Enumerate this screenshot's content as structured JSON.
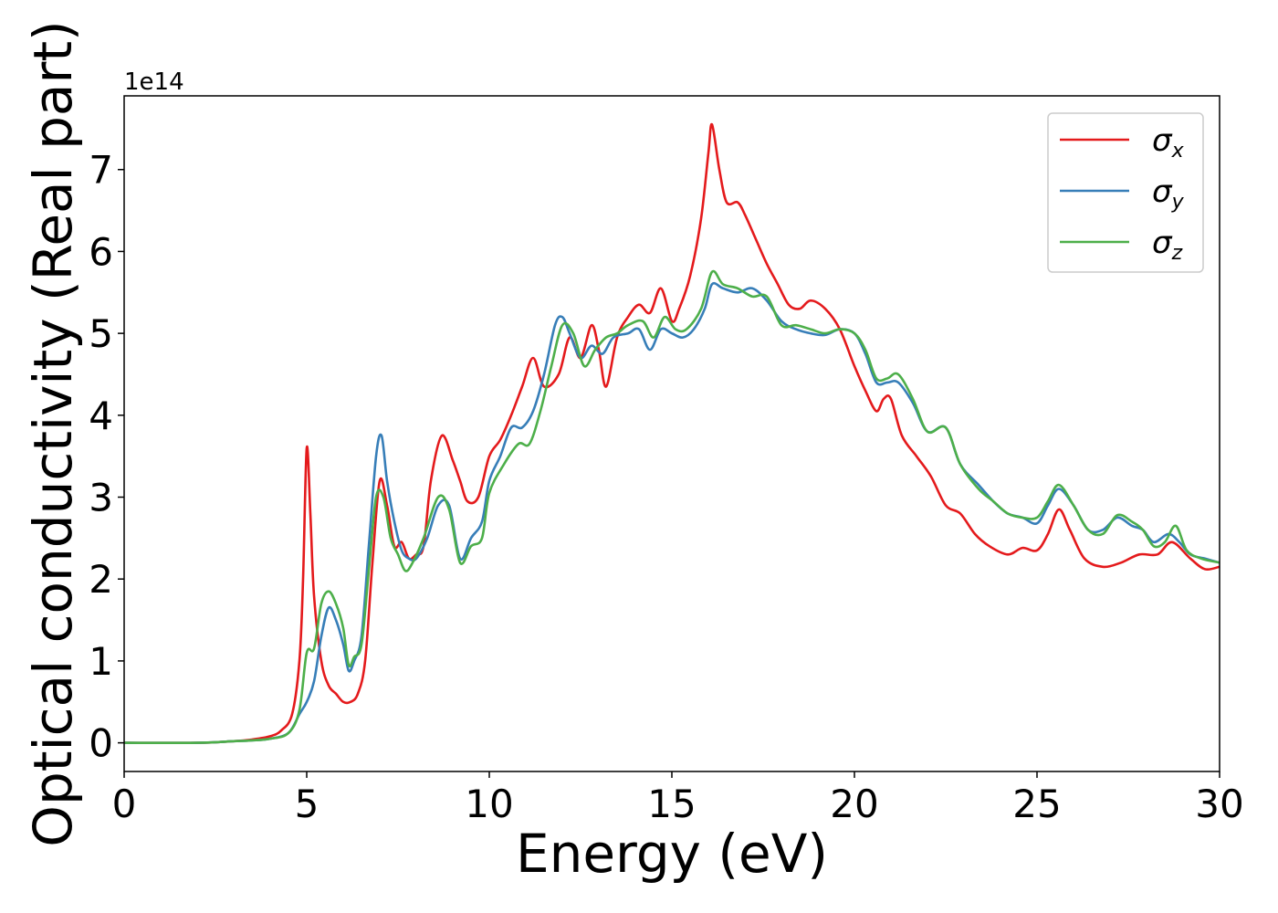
{
  "chart_data": {
    "type": "line",
    "title": "",
    "xlabel": "Energy (eV)",
    "ylabel": "Optical conductivity (Real part)",
    "y_offset_label": "1e14",
    "xlim": [
      0,
      30
    ],
    "ylim": [
      -0.35,
      7.9
    ],
    "x_ticks": [
      0,
      5,
      10,
      15,
      20,
      25,
      30
    ],
    "y_ticks": [
      0,
      1,
      2,
      3,
      4,
      5,
      6,
      7
    ],
    "x_tick_labels": [
      "0",
      "5",
      "10",
      "15",
      "20",
      "25",
      "30"
    ],
    "y_tick_labels": [
      "0",
      "1",
      "2",
      "3",
      "4",
      "5",
      "6",
      "7"
    ],
    "grid": false,
    "legend_position": "top-right",
    "series": [
      {
        "name": "σx",
        "symbol": "σ",
        "subscript": "x",
        "color": "#e41a1c",
        "points": [
          [
            0,
            0
          ],
          [
            2,
            0
          ],
          [
            3,
            0.02
          ],
          [
            3.5,
            0.04
          ],
          [
            4,
            0.08
          ],
          [
            4.3,
            0.15
          ],
          [
            4.6,
            0.35
          ],
          [
            4.8,
            1.0
          ],
          [
            4.9,
            2.0
          ],
          [
            5.0,
            3.6
          ],
          [
            5.1,
            2.8
          ],
          [
            5.2,
            1.8
          ],
          [
            5.4,
            1.0
          ],
          [
            5.6,
            0.7
          ],
          [
            5.8,
            0.6
          ],
          [
            6.0,
            0.5
          ],
          [
            6.2,
            0.5
          ],
          [
            6.4,
            0.6
          ],
          [
            6.6,
            1.0
          ],
          [
            6.8,
            2.2
          ],
          [
            7.0,
            3.2
          ],
          [
            7.2,
            2.9
          ],
          [
            7.4,
            2.4
          ],
          [
            7.6,
            2.45
          ],
          [
            7.8,
            2.25
          ],
          [
            8.0,
            2.3
          ],
          [
            8.2,
            2.4
          ],
          [
            8.4,
            3.2
          ],
          [
            8.7,
            3.75
          ],
          [
            9.0,
            3.45
          ],
          [
            9.2,
            3.2
          ],
          [
            9.4,
            2.95
          ],
          [
            9.7,
            3.0
          ],
          [
            10.0,
            3.5
          ],
          [
            10.3,
            3.7
          ],
          [
            10.6,
            4.0
          ],
          [
            10.9,
            4.35
          ],
          [
            11.2,
            4.7
          ],
          [
            11.5,
            4.35
          ],
          [
            11.9,
            4.5
          ],
          [
            12.2,
            4.95
          ],
          [
            12.5,
            4.7
          ],
          [
            12.8,
            5.1
          ],
          [
            13.0,
            4.8
          ],
          [
            13.2,
            4.35
          ],
          [
            13.5,
            4.95
          ],
          [
            13.8,
            5.2
          ],
          [
            14.1,
            5.35
          ],
          [
            14.4,
            5.25
          ],
          [
            14.7,
            5.55
          ],
          [
            15.0,
            5.15
          ],
          [
            15.2,
            5.3
          ],
          [
            15.5,
            5.7
          ],
          [
            15.8,
            6.4
          ],
          [
            16.0,
            7.2
          ],
          [
            16.1,
            7.55
          ],
          [
            16.3,
            7.0
          ],
          [
            16.5,
            6.6
          ],
          [
            16.8,
            6.6
          ],
          [
            17.0,
            6.45
          ],
          [
            17.3,
            6.15
          ],
          [
            17.6,
            5.85
          ],
          [
            17.9,
            5.6
          ],
          [
            18.2,
            5.35
          ],
          [
            18.5,
            5.3
          ],
          [
            18.8,
            5.4
          ],
          [
            19.2,
            5.3
          ],
          [
            19.6,
            5.05
          ],
          [
            20.0,
            4.6
          ],
          [
            20.3,
            4.3
          ],
          [
            20.6,
            4.05
          ],
          [
            20.8,
            4.2
          ],
          [
            21.0,
            4.2
          ],
          [
            21.3,
            3.75
          ],
          [
            21.7,
            3.5
          ],
          [
            22.1,
            3.25
          ],
          [
            22.5,
            2.9
          ],
          [
            22.9,
            2.8
          ],
          [
            23.3,
            2.55
          ],
          [
            23.7,
            2.4
          ],
          [
            24.2,
            2.3
          ],
          [
            24.6,
            2.38
          ],
          [
            25.0,
            2.35
          ],
          [
            25.3,
            2.55
          ],
          [
            25.6,
            2.85
          ],
          [
            25.9,
            2.6
          ],
          [
            26.3,
            2.25
          ],
          [
            26.8,
            2.15
          ],
          [
            27.3,
            2.2
          ],
          [
            27.8,
            2.3
          ],
          [
            28.3,
            2.3
          ],
          [
            28.7,
            2.45
          ],
          [
            29.2,
            2.25
          ],
          [
            29.6,
            2.12
          ],
          [
            30,
            2.15
          ]
        ]
      },
      {
        "name": "σy",
        "symbol": "σ",
        "subscript": "y",
        "color": "#377eb8",
        "points": [
          [
            0,
            0
          ],
          [
            2,
            0
          ],
          [
            3,
            0.02
          ],
          [
            3.5,
            0.03
          ],
          [
            4,
            0.05
          ],
          [
            4.5,
            0.12
          ],
          [
            4.8,
            0.35
          ],
          [
            5.0,
            0.5
          ],
          [
            5.2,
            0.75
          ],
          [
            5.4,
            1.3
          ],
          [
            5.6,
            1.65
          ],
          [
            5.8,
            1.5
          ],
          [
            6.0,
            1.2
          ],
          [
            6.15,
            0.88
          ],
          [
            6.3,
            1.0
          ],
          [
            6.5,
            1.3
          ],
          [
            6.7,
            2.4
          ],
          [
            6.9,
            3.5
          ],
          [
            7.05,
            3.75
          ],
          [
            7.2,
            3.2
          ],
          [
            7.4,
            2.7
          ],
          [
            7.6,
            2.35
          ],
          [
            7.8,
            2.25
          ],
          [
            8.0,
            2.25
          ],
          [
            8.3,
            2.5
          ],
          [
            8.6,
            2.9
          ],
          [
            8.9,
            2.9
          ],
          [
            9.2,
            2.25
          ],
          [
            9.5,
            2.5
          ],
          [
            9.8,
            2.7
          ],
          [
            10.0,
            3.2
          ],
          [
            10.3,
            3.5
          ],
          [
            10.6,
            3.85
          ],
          [
            10.9,
            3.85
          ],
          [
            11.2,
            4.05
          ],
          [
            11.5,
            4.5
          ],
          [
            11.8,
            5.1
          ],
          [
            12.0,
            5.2
          ],
          [
            12.2,
            5.0
          ],
          [
            12.5,
            4.7
          ],
          [
            12.8,
            4.85
          ],
          [
            13.1,
            4.75
          ],
          [
            13.4,
            4.95
          ],
          [
            13.8,
            5.0
          ],
          [
            14.1,
            5.05
          ],
          [
            14.4,
            4.8
          ],
          [
            14.7,
            5.05
          ],
          [
            15.0,
            5.0
          ],
          [
            15.3,
            4.95
          ],
          [
            15.6,
            5.05
          ],
          [
            15.9,
            5.3
          ],
          [
            16.1,
            5.6
          ],
          [
            16.4,
            5.55
          ],
          [
            16.8,
            5.5
          ],
          [
            17.2,
            5.55
          ],
          [
            17.6,
            5.4
          ],
          [
            18.0,
            5.15
          ],
          [
            18.4,
            5.05
          ],
          [
            18.8,
            5.0
          ],
          [
            19.2,
            4.98
          ],
          [
            19.6,
            5.05
          ],
          [
            20.0,
            5.0
          ],
          [
            20.3,
            4.75
          ],
          [
            20.6,
            4.4
          ],
          [
            20.9,
            4.4
          ],
          [
            21.2,
            4.4
          ],
          [
            21.6,
            4.15
          ],
          [
            22.0,
            3.8
          ],
          [
            22.5,
            3.85
          ],
          [
            22.9,
            3.4
          ],
          [
            23.4,
            3.15
          ],
          [
            23.8,
            2.95
          ],
          [
            24.2,
            2.8
          ],
          [
            24.6,
            2.75
          ],
          [
            25.0,
            2.68
          ],
          [
            25.3,
            2.9
          ],
          [
            25.6,
            3.1
          ],
          [
            26.0,
            2.9
          ],
          [
            26.4,
            2.6
          ],
          [
            26.8,
            2.6
          ],
          [
            27.2,
            2.75
          ],
          [
            27.6,
            2.65
          ],
          [
            27.9,
            2.6
          ],
          [
            28.2,
            2.45
          ],
          [
            28.6,
            2.55
          ],
          [
            28.9,
            2.45
          ],
          [
            29.2,
            2.3
          ],
          [
            29.6,
            2.25
          ],
          [
            30,
            2.2
          ]
        ]
      },
      {
        "name": "σz",
        "symbol": "σ",
        "subscript": "z",
        "color": "#4daf4a",
        "points": [
          [
            0,
            0
          ],
          [
            2,
            0
          ],
          [
            3,
            0.02
          ],
          [
            3.5,
            0.03
          ],
          [
            4,
            0.05
          ],
          [
            4.5,
            0.12
          ],
          [
            4.8,
            0.4
          ],
          [
            5.0,
            1.1
          ],
          [
            5.2,
            1.15
          ],
          [
            5.4,
            1.7
          ],
          [
            5.6,
            1.85
          ],
          [
            5.8,
            1.7
          ],
          [
            6.0,
            1.4
          ],
          [
            6.15,
            0.95
          ],
          [
            6.3,
            1.05
          ],
          [
            6.5,
            1.2
          ],
          [
            6.7,
            2.1
          ],
          [
            6.9,
            3.0
          ],
          [
            7.1,
            3.0
          ],
          [
            7.3,
            2.5
          ],
          [
            7.5,
            2.3
          ],
          [
            7.7,
            2.1
          ],
          [
            7.9,
            2.2
          ],
          [
            8.2,
            2.5
          ],
          [
            8.6,
            3.0
          ],
          [
            8.9,
            2.85
          ],
          [
            9.2,
            2.2
          ],
          [
            9.5,
            2.4
          ],
          [
            9.8,
            2.5
          ],
          [
            10.0,
            3.05
          ],
          [
            10.4,
            3.4
          ],
          [
            10.8,
            3.65
          ],
          [
            11.1,
            3.65
          ],
          [
            11.4,
            4.05
          ],
          [
            11.7,
            4.6
          ],
          [
            12.0,
            5.1
          ],
          [
            12.3,
            5.0
          ],
          [
            12.6,
            4.6
          ],
          [
            12.9,
            4.8
          ],
          [
            13.2,
            4.95
          ],
          [
            13.5,
            5.0
          ],
          [
            13.8,
            5.1
          ],
          [
            14.2,
            5.15
          ],
          [
            14.5,
            4.95
          ],
          [
            14.8,
            5.2
          ],
          [
            15.1,
            5.05
          ],
          [
            15.4,
            5.05
          ],
          [
            15.8,
            5.3
          ],
          [
            16.1,
            5.75
          ],
          [
            16.4,
            5.6
          ],
          [
            16.8,
            5.55
          ],
          [
            17.2,
            5.45
          ],
          [
            17.6,
            5.45
          ],
          [
            18.0,
            5.1
          ],
          [
            18.4,
            5.1
          ],
          [
            18.8,
            5.05
          ],
          [
            19.2,
            5.0
          ],
          [
            19.6,
            5.05
          ],
          [
            20.0,
            5.0
          ],
          [
            20.3,
            4.8
          ],
          [
            20.6,
            4.45
          ],
          [
            20.9,
            4.45
          ],
          [
            21.2,
            4.5
          ],
          [
            21.6,
            4.2
          ],
          [
            22.0,
            3.8
          ],
          [
            22.5,
            3.85
          ],
          [
            22.9,
            3.4
          ],
          [
            23.4,
            3.1
          ],
          [
            23.8,
            2.95
          ],
          [
            24.2,
            2.8
          ],
          [
            24.6,
            2.75
          ],
          [
            25.0,
            2.75
          ],
          [
            25.3,
            2.95
          ],
          [
            25.6,
            3.15
          ],
          [
            26.0,
            2.9
          ],
          [
            26.4,
            2.6
          ],
          [
            26.8,
            2.55
          ],
          [
            27.2,
            2.78
          ],
          [
            27.6,
            2.7
          ],
          [
            27.9,
            2.6
          ],
          [
            28.2,
            2.4
          ],
          [
            28.5,
            2.45
          ],
          [
            28.8,
            2.65
          ],
          [
            29.1,
            2.35
          ],
          [
            29.5,
            2.25
          ],
          [
            30,
            2.2
          ]
        ]
      }
    ]
  }
}
